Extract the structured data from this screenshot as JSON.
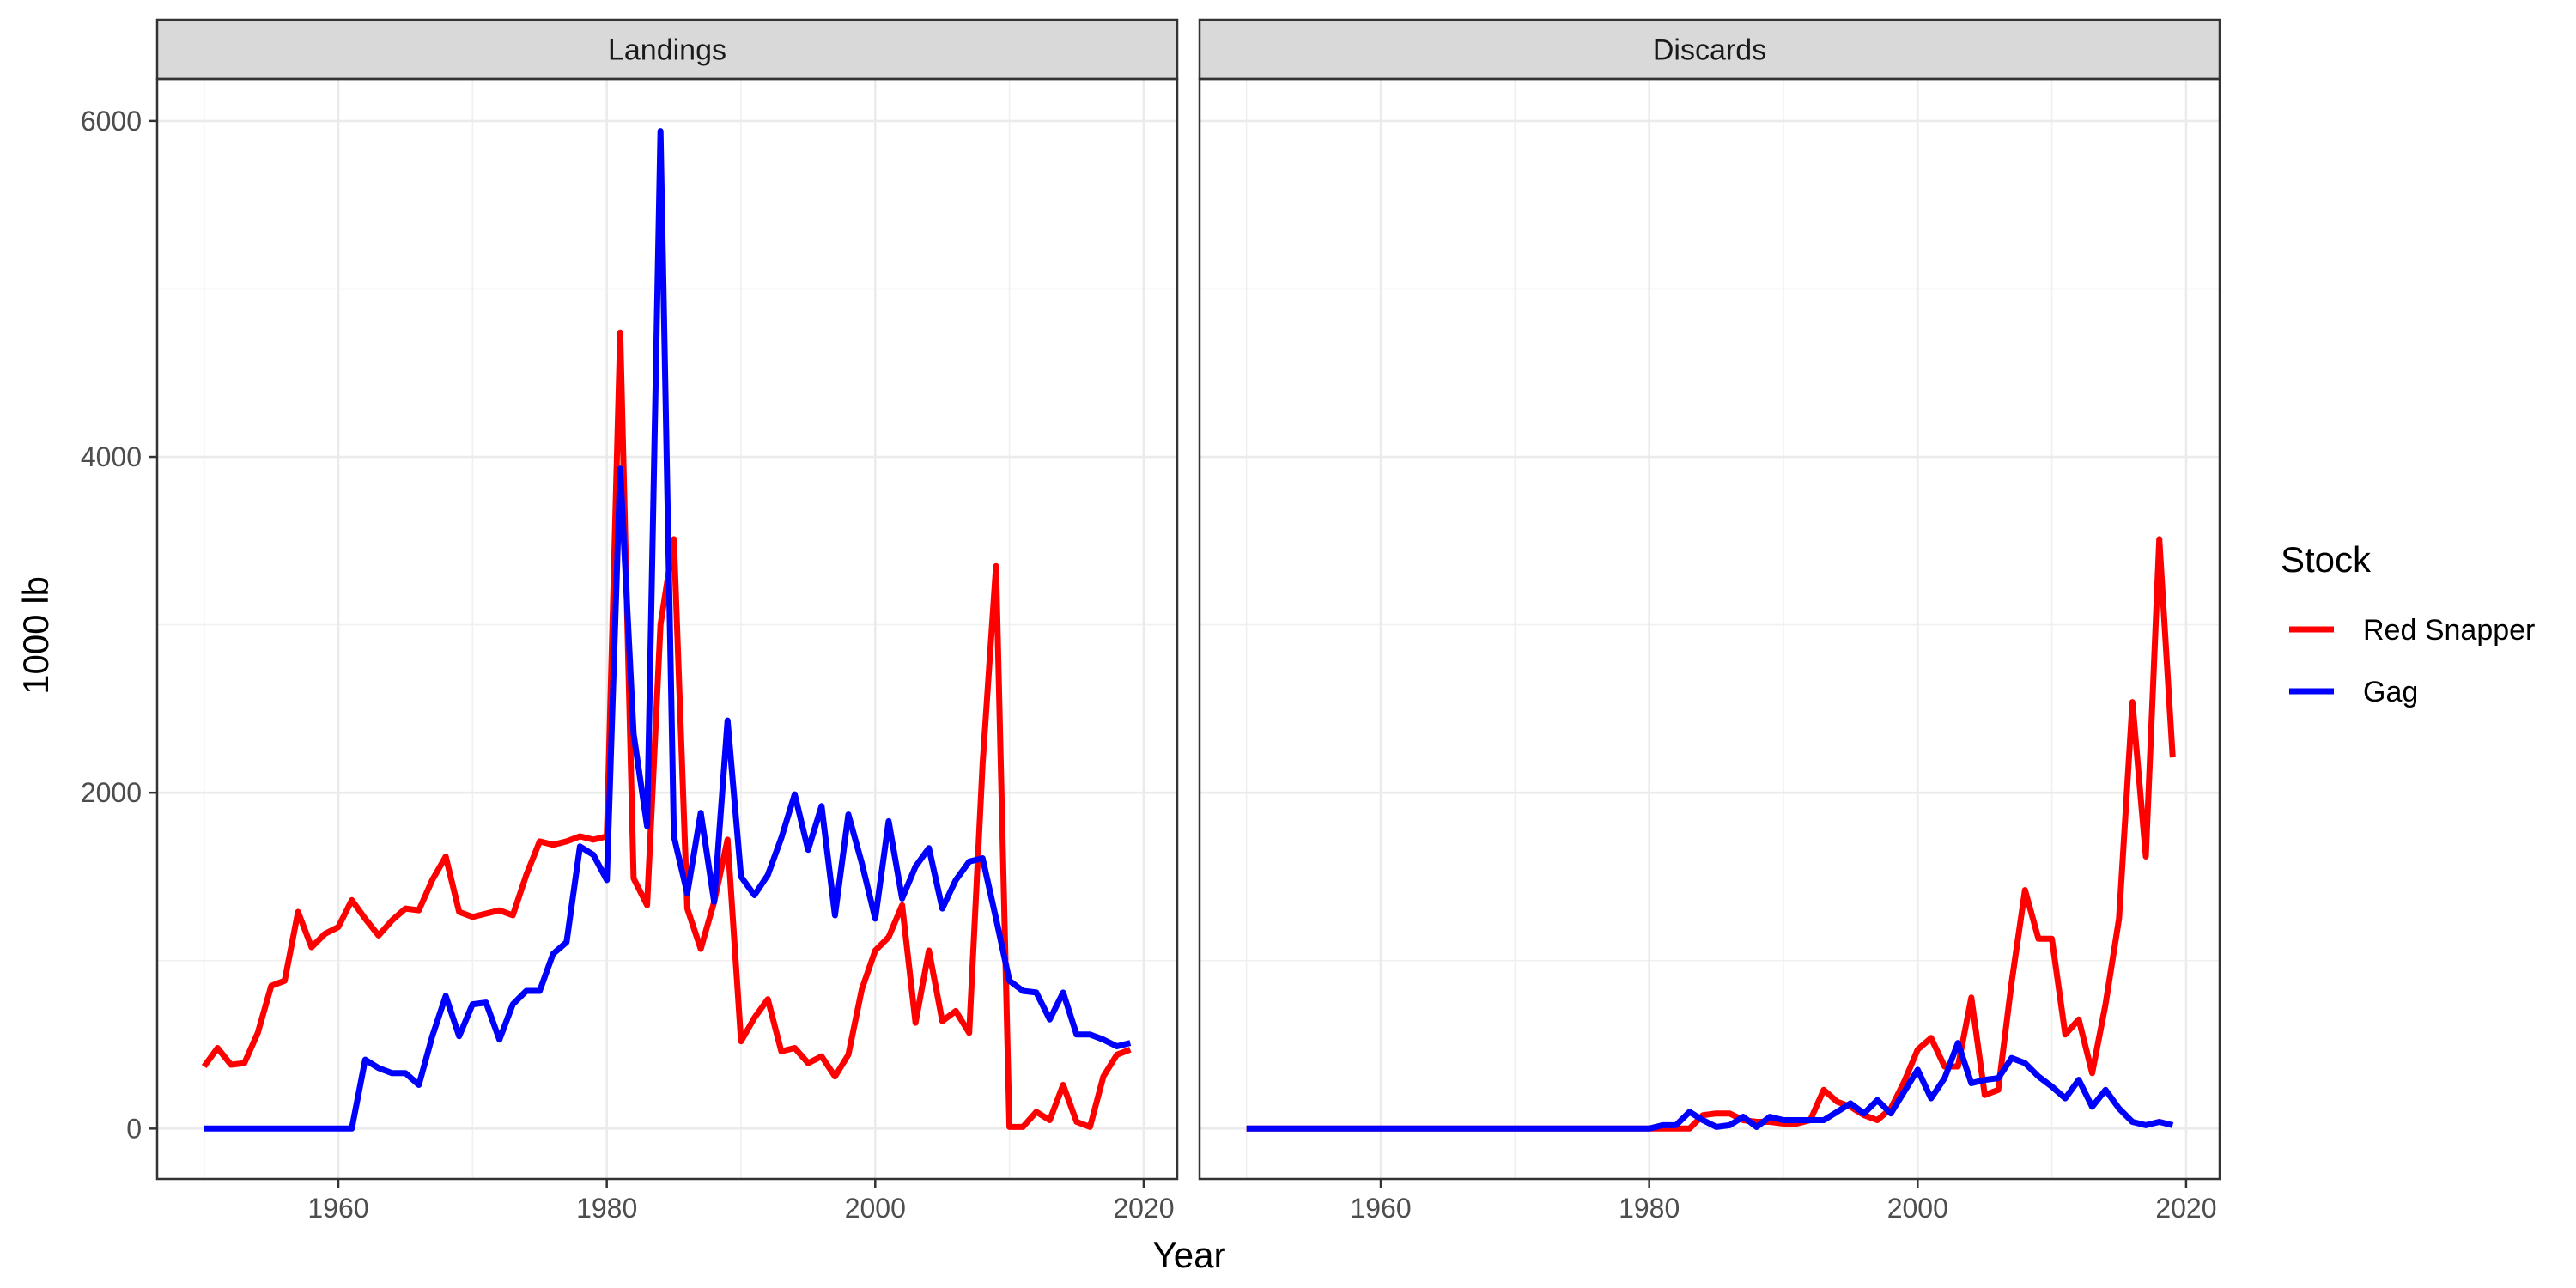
{
  "chart_data": {
    "type": "line",
    "ylabel": "1000 lb",
    "xlabel": "Year",
    "xlim": [
      1946.5,
      2022.5
    ],
    "ylim": [
      -300,
      6250
    ],
    "x_ticks": [
      1960,
      1980,
      2000,
      2020
    ],
    "y_ticks": [
      0,
      2000,
      4000,
      6000
    ],
    "grid": true,
    "legend": {
      "title": "Stock",
      "position": "right",
      "entries": [
        {
          "label": "Red Snapper",
          "color": "#ff0000"
        },
        {
          "label": "Gag",
          "color": "#0000ff"
        }
      ]
    },
    "x": [
      1950,
      1951,
      1952,
      1953,
      1954,
      1955,
      1956,
      1957,
      1958,
      1959,
      1960,
      1961,
      1962,
      1963,
      1964,
      1965,
      1966,
      1967,
      1968,
      1969,
      1970,
      1971,
      1972,
      1973,
      1974,
      1975,
      1976,
      1977,
      1978,
      1979,
      1980,
      1981,
      1982,
      1983,
      1984,
      1985,
      1986,
      1987,
      1988,
      1989,
      1990,
      1991,
      1992,
      1993,
      1994,
      1995,
      1996,
      1997,
      1998,
      1999,
      2000,
      2001,
      2002,
      2003,
      2004,
      2005,
      2006,
      2007,
      2008,
      2009,
      2010,
      2011,
      2012,
      2013,
      2014,
      2015,
      2016,
      2017,
      2018,
      2019
    ],
    "panels": [
      {
        "title": "Landings",
        "series": [
          {
            "name": "Red Snapper",
            "color": "#ff0000",
            "values": [
              370,
              480,
              380,
              390,
              570,
              850,
              880,
              1290,
              1080,
              1160,
              1200,
              1360,
              1250,
              1150,
              1240,
              1310,
              1300,
              1480,
              1620,
              1290,
              1260,
              1280,
              1300,
              1270,
              1510,
              1710,
              1690,
              1710,
              1740,
              1720,
              1740,
              4740,
              1490,
              1330,
              3000,
              3510,
              1310,
              1070,
              1350,
              1720,
              520,
              660,
              770,
              460,
              480,
              390,
              430,
              310,
              440,
              830,
              1060,
              1140,
              1330,
              630,
              1060,
              640,
              700,
              570,
              2170,
              3350,
              10,
              10,
              100,
              50,
              260,
              40,
              10,
              310,
              440,
              470
            ]
          },
          {
            "name": "Gag",
            "color": "#0000ff",
            "values": [
              0,
              0,
              0,
              0,
              0,
              0,
              0,
              0,
              0,
              0,
              0,
              0,
              410,
              360,
              330,
              330,
              260,
              550,
              790,
              550,
              740,
              750,
              530,
              740,
              820,
              820,
              1040,
              1110,
              1680,
              1630,
              1480,
              3930,
              2350,
              1800,
              5940,
              1740,
              1400,
              1880,
              1350,
              2430,
              1500,
              1390,
              1510,
              1730,
              1990,
              1660,
              1920,
              1270,
              1870,
              1580,
              1250,
              1830,
              1370,
              1560,
              1670,
              1310,
              1480,
              1590,
              1610,
              1250,
              880,
              820,
              810,
              650,
              810,
              560,
              560,
              530,
              490,
              510
            ]
          }
        ]
      },
      {
        "title": "Discards",
        "series": [
          {
            "name": "Red Snapper",
            "color": "#ff0000",
            "values": [
              0,
              0,
              0,
              0,
              0,
              0,
              0,
              0,
              0,
              0,
              0,
              0,
              0,
              0,
              0,
              0,
              0,
              0,
              0,
              0,
              0,
              0,
              0,
              0,
              0,
              0,
              0,
              0,
              0,
              0,
              0,
              0,
              0,
              0,
              80,
              90,
              90,
              50,
              40,
              40,
              30,
              30,
              50,
              230,
              160,
              130,
              80,
              50,
              120,
              280,
              470,
              540,
              370,
              370,
              780,
              200,
              230,
              870,
              1420,
              1130,
              1130,
              560,
              650,
              330,
              740,
              1250,
              2540,
              1620,
              3510,
              2210
            ]
          },
          {
            "name": "Gag",
            "color": "#0000ff",
            "values": [
              0,
              0,
              0,
              0,
              0,
              0,
              0,
              0,
              0,
              0,
              0,
              0,
              0,
              0,
              0,
              0,
              0,
              0,
              0,
              0,
              0,
              0,
              0,
              0,
              0,
              0,
              0,
              0,
              0,
              0,
              0,
              20,
              20,
              100,
              50,
              10,
              20,
              70,
              10,
              70,
              50,
              50,
              50,
              50,
              100,
              150,
              90,
              170,
              90,
              220,
              350,
              180,
              300,
              510,
              270,
              290,
              300,
              420,
              390,
              310,
              250,
              180,
              290,
              130,
              230,
              120,
              40,
              20,
              40,
              20
            ]
          }
        ]
      }
    ]
  }
}
